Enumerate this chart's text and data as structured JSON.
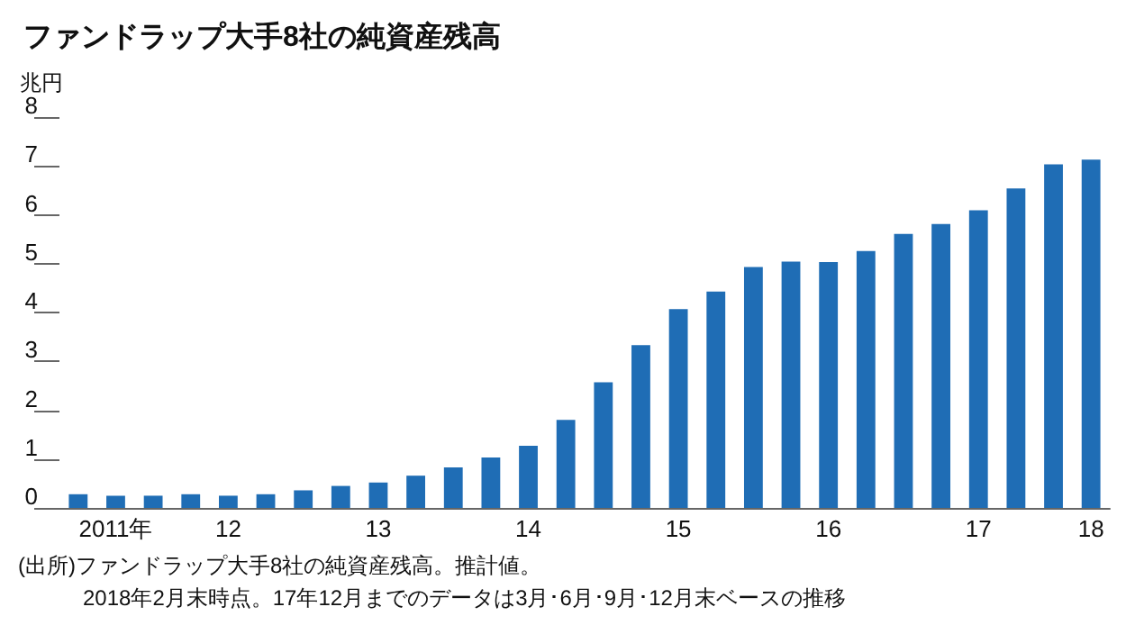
{
  "chart_data": {
    "type": "bar",
    "title": "ファンドラップ大手8社の純資産残高",
    "ylabel": "兆円",
    "categories": [
      null,
      "2011年",
      null,
      null,
      "12",
      null,
      null,
      null,
      "13",
      null,
      null,
      null,
      "14",
      null,
      null,
      null,
      "15",
      null,
      null,
      null,
      "16",
      null,
      null,
      null,
      "17",
      null,
      null,
      "18"
    ],
    "values": [
      0.28,
      0.25,
      0.25,
      0.28,
      0.25,
      0.28,
      0.36,
      0.45,
      0.52,
      0.66,
      0.83,
      1.03,
      1.27,
      1.8,
      2.57,
      3.33,
      4.07,
      4.43,
      4.93,
      5.04,
      5.03,
      5.26,
      5.61,
      5.81,
      6.09,
      6.54,
      7.03,
      7.13
    ],
    "color": "#1f6db5",
    "ylim": [
      0,
      8
    ],
    "yticks": [
      0,
      1,
      2,
      3,
      4,
      5,
      6,
      7,
      8
    ],
    "grid": false,
    "annotations": [
      "(出所)ファンドラップ大手8社の純資産残高。推計値。",
      "2018年2月末時点。17年12月までのデータは3月･6月･9月･12月末ベースの推移"
    ]
  }
}
